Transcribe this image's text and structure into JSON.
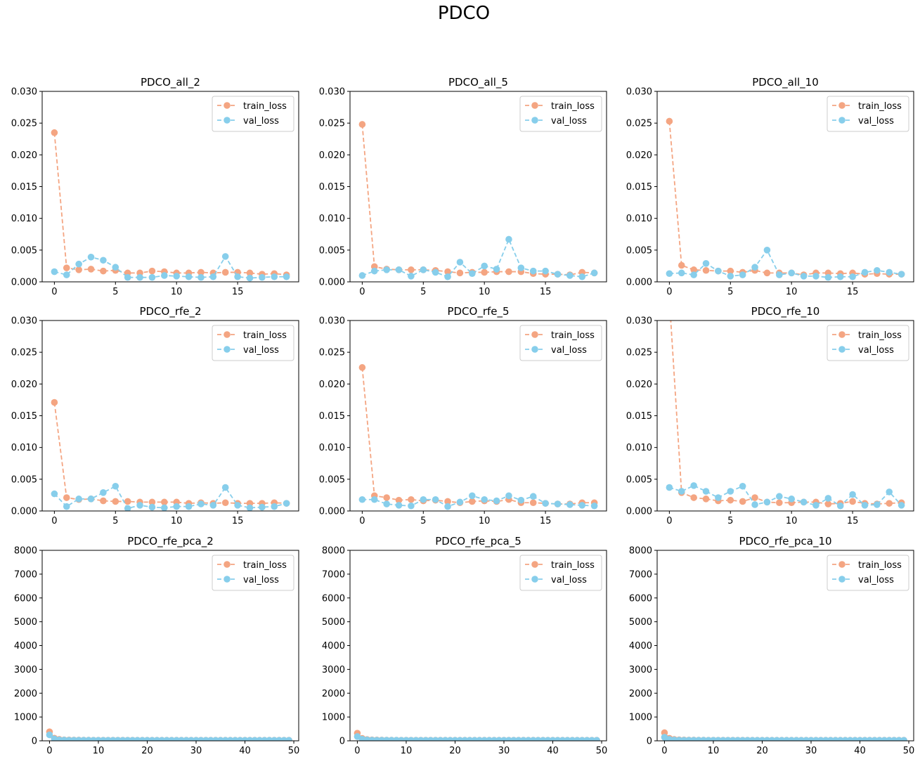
{
  "figure": {
    "suptitle": "PDCO",
    "colors": {
      "train": "#F4A582",
      "val": "#87CEEB"
    }
  },
  "chart_data": [
    {
      "type": "line",
      "title": "PDCO_all_2",
      "xlim": [
        -1,
        20
      ],
      "ylim": [
        0,
        0.03
      ],
      "xticks": [
        0,
        5,
        10,
        15
      ],
      "yticks": [
        0.0,
        0.005,
        0.01,
        0.015,
        0.02,
        0.025,
        0.03
      ],
      "ytick_labels": [
        "0.000",
        "0.005",
        "0.010",
        "0.015",
        "0.020",
        "0.025",
        "0.030"
      ],
      "legend": "top-right",
      "x": [
        0,
        1,
        2,
        3,
        4,
        5,
        6,
        7,
        8,
        9,
        10,
        11,
        12,
        13,
        14,
        15,
        16,
        17,
        18,
        19
      ],
      "series": [
        {
          "name": "train_loss",
          "values": [
            0.0235,
            0.0022,
            0.0019,
            0.002,
            0.0017,
            0.0018,
            0.0014,
            0.0014,
            0.0017,
            0.0016,
            0.0014,
            0.0014,
            0.0015,
            0.0014,
            0.0015,
            0.0015,
            0.0014,
            0.0012,
            0.0013,
            0.0011
          ]
        },
        {
          "name": "val_loss",
          "values": [
            0.0016,
            0.0011,
            0.0028,
            0.0039,
            0.0034,
            0.0023,
            0.0007,
            0.0007,
            0.0007,
            0.001,
            0.0009,
            0.0008,
            0.0007,
            0.0008,
            0.004,
            0.0008,
            0.0006,
            0.0007,
            0.0008,
            0.0008
          ]
        }
      ]
    },
    {
      "type": "line",
      "title": "PDCO_all_5",
      "xlim": [
        -1,
        20
      ],
      "ylim": [
        0,
        0.03
      ],
      "xticks": [
        0,
        5,
        10,
        15
      ],
      "yticks": [
        0.0,
        0.005,
        0.01,
        0.015,
        0.02,
        0.025,
        0.03
      ],
      "ytick_labels": [
        "0.000",
        "0.005",
        "0.010",
        "0.015",
        "0.020",
        "0.025",
        "0.030"
      ],
      "legend": "top-right",
      "x": [
        0,
        1,
        2,
        3,
        4,
        5,
        6,
        7,
        8,
        9,
        10,
        11,
        12,
        13,
        14,
        15,
        16,
        17,
        18,
        19
      ],
      "series": [
        {
          "name": "train_loss",
          "values": [
            0.0248,
            0.0024,
            0.002,
            0.0019,
            0.0019,
            0.0019,
            0.0018,
            0.0016,
            0.0014,
            0.0015,
            0.0015,
            0.0016,
            0.0016,
            0.0016,
            0.0013,
            0.0012,
            0.0012,
            0.0011,
            0.0015,
            0.0014
          ]
        },
        {
          "name": "val_loss",
          "values": [
            0.001,
            0.0017,
            0.0019,
            0.0019,
            0.0009,
            0.0019,
            0.0015,
            0.0008,
            0.0031,
            0.0013,
            0.0025,
            0.002,
            0.0067,
            0.0022,
            0.0017,
            0.0017,
            0.0012,
            0.001,
            0.0008,
            0.0014
          ]
        }
      ]
    },
    {
      "type": "line",
      "title": "PDCO_all_10",
      "xlim": [
        -1,
        20
      ],
      "ylim": [
        0,
        0.03
      ],
      "xticks": [
        0,
        5,
        10,
        15
      ],
      "yticks": [
        0.0,
        0.005,
        0.01,
        0.015,
        0.02,
        0.025,
        0.03
      ],
      "ytick_labels": [
        "0.000",
        "0.005",
        "0.010",
        "0.015",
        "0.020",
        "0.025",
        "0.030"
      ],
      "legend": "top-right",
      "x": [
        0,
        1,
        2,
        3,
        4,
        5,
        6,
        7,
        8,
        9,
        10,
        11,
        12,
        13,
        14,
        15,
        16,
        17,
        18,
        19
      ],
      "series": [
        {
          "name": "train_loss",
          "values": [
            0.0253,
            0.0026,
            0.0019,
            0.0018,
            0.0017,
            0.0017,
            0.0015,
            0.0018,
            0.0014,
            0.0014,
            0.0014,
            0.0011,
            0.0014,
            0.0014,
            0.0013,
            0.0014,
            0.0012,
            0.0013,
            0.0012,
            0.0012
          ]
        },
        {
          "name": "val_loss",
          "values": [
            0.0013,
            0.0014,
            0.0011,
            0.0029,
            0.0017,
            0.0009,
            0.0011,
            0.0023,
            0.005,
            0.0011,
            0.0014,
            0.0009,
            0.0009,
            0.0007,
            0.0008,
            0.0008,
            0.0015,
            0.0018,
            0.0015,
            0.0012
          ]
        }
      ]
    },
    {
      "type": "line",
      "title": "PDCO_rfe_2",
      "xlim": [
        -1,
        20
      ],
      "ylim": [
        0,
        0.03
      ],
      "xticks": [
        0,
        5,
        10,
        15
      ],
      "yticks": [
        0.0,
        0.005,
        0.01,
        0.015,
        0.02,
        0.025,
        0.03
      ],
      "ytick_labels": [
        "0.000",
        "0.005",
        "0.010",
        "0.015",
        "0.020",
        "0.025",
        "0.030"
      ],
      "legend": "top-right",
      "x": [
        0,
        1,
        2,
        3,
        4,
        5,
        6,
        7,
        8,
        9,
        10,
        11,
        12,
        13,
        14,
        15,
        16,
        17,
        18,
        19
      ],
      "series": [
        {
          "name": "train_loss",
          "values": [
            0.0171,
            0.0021,
            0.0018,
            0.0019,
            0.0016,
            0.0015,
            0.0015,
            0.0014,
            0.0014,
            0.0014,
            0.0014,
            0.0012,
            0.0013,
            0.0012,
            0.0013,
            0.0012,
            0.0012,
            0.0012,
            0.0013,
            0.0012
          ]
        },
        {
          "name": "val_loss",
          "values": [
            0.0027,
            0.0007,
            0.0019,
            0.0019,
            0.0029,
            0.0039,
            0.0004,
            0.0009,
            0.0006,
            0.0005,
            0.0007,
            0.0007,
            0.0011,
            0.0009,
            0.0037,
            0.0009,
            0.0005,
            0.0006,
            0.0007,
            0.0012
          ]
        }
      ]
    },
    {
      "type": "line",
      "title": "PDCO_rfe_5",
      "xlim": [
        -1,
        20
      ],
      "ylim": [
        0,
        0.03
      ],
      "xticks": [
        0,
        5,
        10,
        15
      ],
      "yticks": [
        0.0,
        0.005,
        0.01,
        0.015,
        0.02,
        0.025,
        0.03
      ],
      "ytick_labels": [
        "0.000",
        "0.005",
        "0.010",
        "0.015",
        "0.020",
        "0.025",
        "0.030"
      ],
      "legend": "top-right",
      "x": [
        0,
        1,
        2,
        3,
        4,
        5,
        6,
        7,
        8,
        9,
        10,
        11,
        12,
        13,
        14,
        15,
        16,
        17,
        18,
        19
      ],
      "series": [
        {
          "name": "train_loss",
          "values": [
            0.0226,
            0.0024,
            0.0021,
            0.0017,
            0.0018,
            0.0016,
            0.0017,
            0.0015,
            0.0013,
            0.0015,
            0.0016,
            0.0015,
            0.0018,
            0.0013,
            0.0013,
            0.0012,
            0.0011,
            0.0011,
            0.0013,
            0.0013
          ]
        },
        {
          "name": "val_loss",
          "values": [
            0.0018,
            0.0018,
            0.0011,
            0.0009,
            0.0008,
            0.0018,
            0.0018,
            0.0007,
            0.0014,
            0.0024,
            0.0018,
            0.0016,
            0.0024,
            0.0017,
            0.0023,
            0.0012,
            0.0011,
            0.001,
            0.0009,
            0.0008
          ]
        }
      ]
    },
    {
      "type": "line",
      "title": "PDCO_rfe_10",
      "xlim": [
        -1,
        20
      ],
      "ylim": [
        0,
        0.03
      ],
      "xticks": [
        0,
        5,
        10,
        15
      ],
      "yticks": [
        0.0,
        0.005,
        0.01,
        0.015,
        0.02,
        0.025,
        0.03
      ],
      "ytick_labels": [
        "0.000",
        "0.005",
        "0.010",
        "0.015",
        "0.020",
        "0.025",
        "0.030"
      ],
      "legend": "top-right",
      "x": [
        0,
        1,
        2,
        3,
        4,
        5,
        6,
        7,
        8,
        9,
        10,
        11,
        12,
        13,
        14,
        15,
        16,
        17,
        18,
        19
      ],
      "series": [
        {
          "name": "train_loss",
          "values": [
            0.0335,
            0.0029,
            0.0021,
            0.0019,
            0.0016,
            0.0017,
            0.0015,
            0.0021,
            0.0014,
            0.0013,
            0.0013,
            0.0014,
            0.0014,
            0.0011,
            0.0012,
            0.0015,
            0.0012,
            0.0011,
            0.0012,
            0.0013
          ]
        },
        {
          "name": "val_loss",
          "values": [
            0.0037,
            0.0031,
            0.004,
            0.0031,
            0.0021,
            0.0031,
            0.0039,
            0.001,
            0.0014,
            0.0023,
            0.0019,
            0.0014,
            0.0009,
            0.002,
            0.0008,
            0.0026,
            0.0009,
            0.001,
            0.003,
            0.0009
          ]
        }
      ]
    },
    {
      "type": "line",
      "title": "PDCO_rfe_pca_2",
      "xlim": [
        -1.5,
        51
      ],
      "ylim": [
        0,
        8000
      ],
      "xticks": [
        0,
        10,
        20,
        30,
        40,
        50
      ],
      "yticks": [
        0,
        1000,
        2000,
        3000,
        4000,
        5000,
        6000,
        7000,
        8000
      ],
      "ytick_labels": [
        "0",
        "1000",
        "2000",
        "3000",
        "4000",
        "5000",
        "6000",
        "7000",
        "8000"
      ],
      "legend": "top-right",
      "x": [
        0,
        1,
        2,
        3,
        4,
        5,
        6,
        7,
        8,
        9,
        10,
        11,
        12,
        13,
        14,
        15,
        16,
        17,
        18,
        19,
        20,
        21,
        22,
        23,
        24,
        25,
        26,
        27,
        28,
        29,
        30,
        31,
        32,
        33,
        34,
        35,
        36,
        37,
        38,
        39,
        40,
        41,
        42,
        43,
        44,
        45,
        46,
        47,
        48,
        49
      ],
      "series": [
        {
          "name": "train_loss",
          "values": [
            380,
            110,
            60,
            40,
            35,
            32,
            30,
            28,
            27,
            26,
            25,
            25,
            25,
            24,
            24,
            24,
            24,
            24,
            23,
            23,
            23,
            23,
            23,
            23,
            23,
            23,
            23,
            23,
            23,
            23,
            23,
            23,
            23,
            23,
            23,
            23,
            23,
            23,
            23,
            23,
            23,
            23,
            23,
            23,
            23,
            23,
            23,
            23,
            23,
            23
          ]
        },
        {
          "name": "val_loss",
          "values": [
            250,
            80,
            40,
            30,
            26,
            25,
            24,
            23,
            23,
            22,
            22,
            22,
            22,
            22,
            22,
            22,
            22,
            22,
            22,
            22,
            22,
            22,
            22,
            22,
            22,
            22,
            22,
            22,
            22,
            22,
            22,
            22,
            22,
            22,
            22,
            22,
            22,
            22,
            22,
            22,
            22,
            22,
            22,
            22,
            22,
            22,
            22,
            22,
            22,
            22
          ]
        }
      ]
    },
    {
      "type": "line",
      "title": "PDCO_rfe_pca_5",
      "xlim": [
        -1.5,
        51
      ],
      "ylim": [
        0,
        8000
      ],
      "xticks": [
        0,
        10,
        20,
        30,
        40,
        50
      ],
      "yticks": [
        0,
        1000,
        2000,
        3000,
        4000,
        5000,
        6000,
        7000,
        8000
      ],
      "ytick_labels": [
        "0",
        "1000",
        "2000",
        "3000",
        "4000",
        "5000",
        "6000",
        "7000",
        "8000"
      ],
      "legend": "top-right",
      "x": [
        0,
        1,
        2,
        3,
        4,
        5,
        6,
        7,
        8,
        9,
        10,
        11,
        12,
        13,
        14,
        15,
        16,
        17,
        18,
        19,
        20,
        21,
        22,
        23,
        24,
        25,
        26,
        27,
        28,
        29,
        30,
        31,
        32,
        33,
        34,
        35,
        36,
        37,
        38,
        39,
        40,
        41,
        42,
        43,
        44,
        45,
        46,
        47,
        48,
        49
      ],
      "series": [
        {
          "name": "train_loss",
          "values": [
            320,
            100,
            55,
            40,
            34,
            31,
            29,
            27,
            26,
            26,
            25,
            25,
            25,
            24,
            24,
            24,
            24,
            24,
            23,
            23,
            23,
            23,
            23,
            23,
            23,
            23,
            23,
            23,
            23,
            23,
            23,
            23,
            23,
            23,
            23,
            23,
            23,
            23,
            23,
            23,
            23,
            23,
            23,
            23,
            23,
            23,
            23,
            23,
            23,
            23
          ]
        },
        {
          "name": "val_loss",
          "values": [
            180,
            70,
            38,
            29,
            26,
            25,
            24,
            23,
            23,
            22,
            22,
            22,
            22,
            22,
            22,
            22,
            22,
            22,
            22,
            22,
            22,
            22,
            22,
            22,
            22,
            22,
            22,
            22,
            22,
            22,
            22,
            22,
            22,
            22,
            22,
            22,
            22,
            22,
            22,
            22,
            22,
            22,
            22,
            22,
            22,
            22,
            22,
            22,
            22,
            22
          ]
        }
      ]
    },
    {
      "type": "line",
      "title": "PDCO_rfe_pca_10",
      "xlim": [
        -1.5,
        51
      ],
      "ylim": [
        0,
        8000
      ],
      "xticks": [
        0,
        10,
        20,
        30,
        40,
        50
      ],
      "yticks": [
        0,
        1000,
        2000,
        3000,
        4000,
        5000,
        6000,
        7000,
        8000
      ],
      "ytick_labels": [
        "0",
        "1000",
        "2000",
        "3000",
        "4000",
        "5000",
        "6000",
        "7000",
        "8000"
      ],
      "legend": "top-right",
      "x": [
        0,
        1,
        2,
        3,
        4,
        5,
        6,
        7,
        8,
        9,
        10,
        11,
        12,
        13,
        14,
        15,
        16,
        17,
        18,
        19,
        20,
        21,
        22,
        23,
        24,
        25,
        26,
        27,
        28,
        29,
        30,
        31,
        32,
        33,
        34,
        35,
        36,
        37,
        38,
        39,
        40,
        41,
        42,
        43,
        44,
        45,
        46,
        47,
        48,
        49
      ],
      "series": [
        {
          "name": "train_loss",
          "values": [
            340,
            105,
            58,
            41,
            35,
            32,
            30,
            28,
            27,
            26,
            25,
            25,
            25,
            24,
            24,
            24,
            24,
            24,
            23,
            23,
            23,
            23,
            23,
            23,
            23,
            23,
            23,
            23,
            23,
            23,
            23,
            23,
            23,
            23,
            23,
            23,
            23,
            23,
            23,
            23,
            23,
            23,
            23,
            23,
            23,
            23,
            23,
            23,
            23,
            23
          ]
        },
        {
          "name": "val_loss",
          "values": [
            150,
            60,
            35,
            28,
            26,
            25,
            24,
            23,
            23,
            22,
            22,
            22,
            22,
            22,
            22,
            22,
            22,
            22,
            22,
            22,
            22,
            22,
            22,
            22,
            22,
            22,
            22,
            22,
            22,
            22,
            22,
            22,
            22,
            22,
            22,
            22,
            22,
            22,
            22,
            22,
            22,
            22,
            22,
            22,
            22,
            22,
            22,
            22,
            22,
            22
          ]
        }
      ]
    }
  ]
}
